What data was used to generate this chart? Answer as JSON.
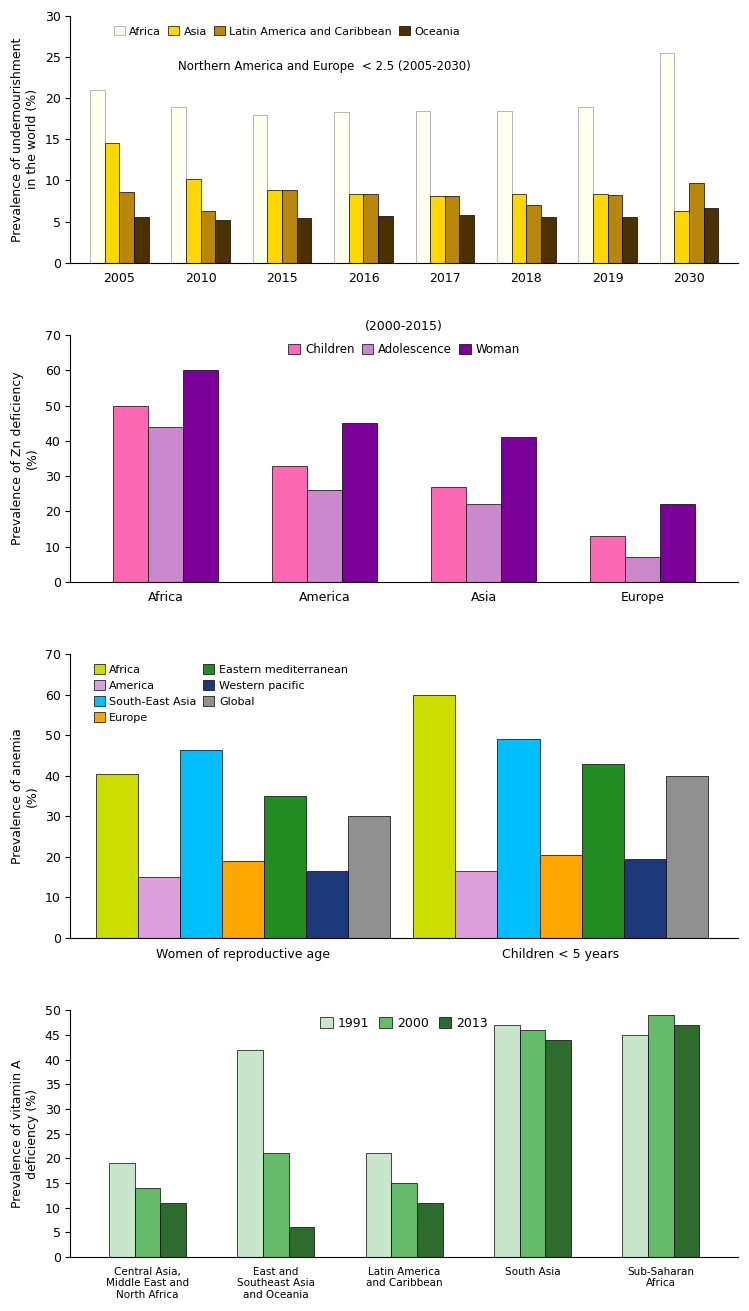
{
  "chart1": {
    "title": "Northern America and Europe  < 2.5 (2005-2030)",
    "ylabel": "Prevalence of undernourishment\nin the world (%)",
    "ylim": [
      0,
      30
    ],
    "yticks": [
      0,
      5,
      10,
      15,
      20,
      25,
      30
    ],
    "years": [
      "2005",
      "2010",
      "2015",
      "2016",
      "2017",
      "2018",
      "2019",
      "2030"
    ],
    "series": {
      "Africa": [
        21.0,
        19.0,
        18.0,
        18.3,
        18.4,
        18.4,
        19.0,
        25.5
      ],
      "Asia": [
        14.5,
        10.2,
        8.8,
        8.4,
        8.1,
        8.3,
        8.3,
        6.3
      ],
      "Latin America and Caribbean": [
        8.6,
        6.3,
        8.8,
        8.4,
        8.1,
        7.0,
        8.2,
        9.7
      ],
      "Oceania": [
        5.5,
        5.2,
        5.4,
        5.7,
        5.8,
        5.6,
        5.6,
        6.7
      ]
    },
    "colors": {
      "Africa": "#FFFFF0",
      "Asia": "#FFD700",
      "Latin America and Caribbean": "#B8860B",
      "Oceania": "#4B3000"
    },
    "legend_order": [
      "Africa",
      "Asia",
      "Latin America and Caribbean",
      "Oceania"
    ]
  },
  "chart2": {
    "title": "(2000-2015)",
    "ylabel": "Prevalence of Zn deficiency\n(%)",
    "ylim": [
      0,
      70
    ],
    "yticks": [
      0,
      10,
      20,
      30,
      40,
      50,
      60,
      70
    ],
    "categories": [
      "Africa",
      "America",
      "Asia",
      "Europe"
    ],
    "series": {
      "Children": [
        50,
        33,
        27,
        13
      ],
      "Adolescence": [
        44,
        26,
        22,
        7
      ],
      "Woman": [
        60,
        45,
        41,
        22
      ]
    },
    "colors": {
      "Children": "#FF69B4",
      "Adolescence": "#CC88CC",
      "Woman": "#7B0099"
    }
  },
  "chart3": {
    "ylabel": "Prevalence of anemia\n(%)",
    "ylim": [
      0,
      70
    ],
    "yticks": [
      0,
      10,
      20,
      30,
      40,
      50,
      60,
      70
    ],
    "groups": [
      "Women of reproductive age",
      "Children < 5 years"
    ],
    "series": {
      "Africa": [
        40.5,
        60.0
      ],
      "America": [
        15.0,
        16.5
      ],
      "South-East Asia": [
        46.5,
        49.0
      ],
      "Europe": [
        19.0,
        20.5
      ],
      "Eastern mediterranean": [
        35.0,
        43.0
      ],
      "Western pacific": [
        16.5,
        19.5
      ],
      "Global": [
        30.0,
        40.0
      ]
    },
    "colors": {
      "Africa": "#CCDD00",
      "America": "#DDA0DD",
      "South-East Asia": "#00BFFF",
      "Europe": "#FFA500",
      "Eastern mediterranean": "#228B22",
      "Western pacific": "#1C3A7A",
      "Global": "#909090"
    },
    "legend_order": [
      "Africa",
      "America",
      "South-East Asia",
      "Europe",
      "Eastern mediterranean",
      "Western pacific",
      "Global"
    ]
  },
  "chart4": {
    "ylabel": "Prevalence of vitamin A\ndeficiency (%)",
    "ylim": [
      0,
      50
    ],
    "yticks": [
      0,
      5,
      10,
      15,
      20,
      25,
      30,
      35,
      40,
      45,
      50
    ],
    "categories": [
      "Central Asia,\nMiddle East and\nNorth Africa",
      "East and\nSoutheast Asia\nand Oceania",
      "Latin America\nand Caribbean",
      "South Asia",
      "Sub-Saharan\nAfrica"
    ],
    "series": {
      "1991": [
        19,
        42,
        21,
        47,
        45
      ],
      "2000": [
        14,
        21,
        15,
        46,
        49
      ],
      "2013": [
        11,
        6,
        11,
        44,
        47
      ]
    },
    "colors": {
      "1991": "#C8E6C9",
      "2000": "#66BB6A",
      "2013": "#2E6B2E"
    }
  }
}
